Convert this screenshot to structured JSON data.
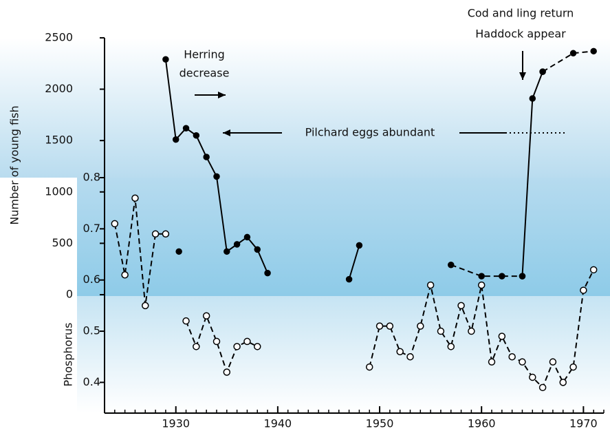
{
  "chart_data": {
    "type": "line",
    "ylabel": "Number of young fish",
    "y2label": "Phosphorus",
    "xlim": [
      1923,
      1972
    ],
    "xticks": [
      1930,
      1940,
      1950,
      1960,
      1970
    ],
    "ylim": [
      0,
      2600
    ],
    "yticks": [
      0,
      500,
      1000,
      1500,
      2000,
      2500
    ],
    "y2lim": [
      0.34,
      0.8
    ],
    "y2ticks": [
      0.4,
      0.5,
      0.6,
      0.7,
      0.8
    ],
    "annotations": [
      "Herring",
      "decrease",
      "Pilchard eggs abundant",
      "Cod and ling return",
      "Haddock appear"
    ],
    "series": [
      {
        "color": "#000000",
        "style": "solid",
        "marker": "filled",
        "x": [
          1929,
          1930,
          1931,
          1932,
          1933,
          1934,
          1935,
          1936,
          1937,
          1938,
          1939
        ],
        "values": [
          2290,
          1510,
          1620,
          1550,
          1340,
          1150,
          420,
          490,
          560,
          440,
          210
        ]
      },
      {
        "color": "#000000",
        "style": "solid",
        "marker": "filled",
        "x": [
          1930.3
        ],
        "values": [
          420
        ]
      },
      {
        "color": "#000000",
        "style": "solid",
        "marker": "filled",
        "x": [
          1947,
          1948
        ],
        "values": [
          150,
          480
        ]
      },
      {
        "color": "#000000",
        "style": "dashed",
        "marker": "filled",
        "x": [
          1957,
          1960,
          1962,
          1964
        ],
        "values": [
          290,
          180,
          180,
          180
        ]
      },
      {
        "color": "#000000",
        "style": "solid",
        "marker": "filled",
        "x": [
          1964,
          1965,
          1966
        ],
        "values": [
          180,
          1910,
          2170
        ]
      },
      {
        "color": "#000000",
        "style": "dashed",
        "marker": "filled",
        "x": [
          1966,
          1969,
          1971
        ],
        "values": [
          2170,
          2350,
          2370
        ]
      },
      {
        "color": "#000000",
        "style": "dashed",
        "marker": "open",
        "axis": "y2",
        "x": [
          1924,
          1925,
          1926,
          1927,
          1928,
          1929,
          1930,
          1931,
          1932,
          1933,
          1934,
          1935,
          1936,
          1937,
          1938,
          1948,
          1949,
          1950,
          1951,
          1952,
          1953,
          1954,
          1955,
          1956,
          1957,
          1958,
          1959,
          1960,
          1961,
          1962,
          1963,
          1964,
          1965,
          1966,
          1967,
          1968,
          1969,
          1970,
          1971
        ],
        "values": [
          0.71,
          0.61,
          0.76,
          0.55,
          0.69,
          0.69,
          null,
          0.52,
          0.47,
          0.53,
          0.48,
          0.42,
          0.47,
          0.48,
          0.47,
          null,
          0.43,
          0.51,
          0.51,
          0.46,
          0.45,
          0.51,
          0.59,
          0.5,
          0.47,
          0.55,
          0.5,
          0.59,
          0.44,
          0.49,
          0.45,
          0.44,
          0.41,
          0.39,
          0.44,
          0.4,
          0.43,
          0.58,
          0.62
        ]
      }
    ]
  }
}
